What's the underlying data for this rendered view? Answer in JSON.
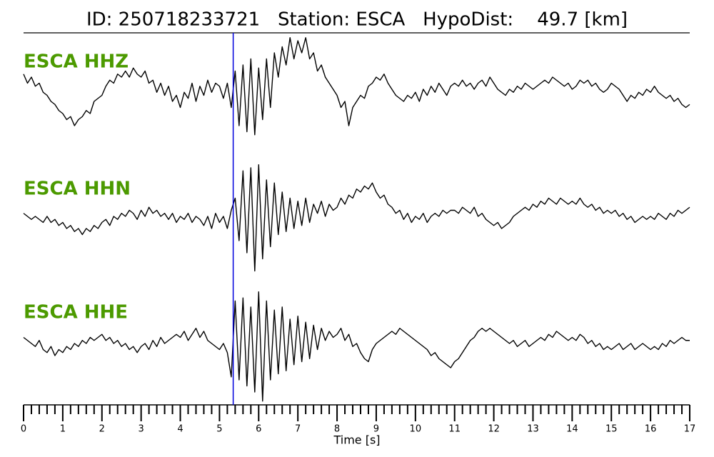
{
  "chart_data": {
    "type": "line",
    "title": "ID: 250718233721   Station: ESCA   HypoDist:    49.7 [km]",
    "xlabel": "Time [s]",
    "xlim": [
      0,
      17
    ],
    "xticks": [
      0,
      1,
      2,
      3,
      4,
      5,
      6,
      7,
      8,
      9,
      10,
      11,
      12,
      13,
      14,
      15,
      16,
      17
    ],
    "minor_xticks": [
      0.2,
      0.4,
      0.6,
      0.8,
      1.2,
      1.4,
      1.6,
      1.8,
      2.2,
      2.4,
      2.6,
      2.8,
      3.2,
      3.4,
      3.6,
      3.8,
      4.2,
      4.4,
      4.6,
      4.8,
      5.2,
      5.4,
      5.6,
      5.8,
      6.2,
      6.4,
      6.6,
      6.8,
      7.2,
      7.4,
      7.6,
      7.8,
      8.2,
      8.4,
      8.6,
      8.8,
      9.2,
      9.4,
      9.6,
      9.8,
      10.2,
      10.4,
      10.6,
      10.8,
      11.2,
      11.4,
      11.6,
      11.8,
      12.2,
      12.4,
      12.6,
      12.8,
      13.2,
      13.4,
      13.6,
      13.8,
      14.2,
      14.4,
      14.6,
      14.8,
      15.2,
      15.4,
      15.6,
      15.8,
      16.2,
      16.4,
      16.6,
      16.8
    ],
    "ylim": [
      -1,
      1
    ],
    "label_color": "#4c9a00",
    "vline": {
      "x": 5.35,
      "color": "#0000dd"
    },
    "x": [
      0,
      0.1,
      0.2,
      0.3,
      0.4,
      0.5,
      0.6,
      0.7,
      0.8,
      0.9,
      1,
      1.1,
      1.2,
      1.3,
      1.4,
      1.5,
      1.6,
      1.7,
      1.8,
      1.9,
      2,
      2.1,
      2.2,
      2.3,
      2.4,
      2.5,
      2.6,
      2.7,
      2.8,
      2.9,
      3,
      3.1,
      3.2,
      3.3,
      3.4,
      3.5,
      3.6,
      3.7,
      3.8,
      3.9,
      4,
      4.1,
      4.2,
      4.3,
      4.4,
      4.5,
      4.6,
      4.7,
      4.8,
      4.9,
      5,
      5.1,
      5.2,
      5.3,
      5.4,
      5.5,
      5.6,
      5.7,
      5.8,
      5.9,
      6,
      6.1,
      6.2,
      6.3,
      6.4,
      6.5,
      6.6,
      6.7,
      6.8,
      6.9,
      7,
      7.1,
      7.2,
      7.3,
      7.4,
      7.5,
      7.6,
      7.7,
      7.8,
      7.9,
      8,
      8.1,
      8.2,
      8.3,
      8.4,
      8.5,
      8.6,
      8.7,
      8.8,
      8.9,
      9,
      9.1,
      9.2,
      9.3,
      9.4,
      9.5,
      9.6,
      9.7,
      9.8,
      9.9,
      10,
      10.1,
      10.2,
      10.3,
      10.4,
      10.5,
      10.6,
      10.7,
      10.8,
      10.9,
      11,
      11.1,
      11.2,
      11.3,
      11.4,
      11.5,
      11.6,
      11.7,
      11.8,
      11.9,
      12,
      12.1,
      12.2,
      12.3,
      12.4,
      12.5,
      12.6,
      12.7,
      12.8,
      12.9,
      13,
      13.1,
      13.2,
      13.3,
      13.4,
      13.5,
      13.6,
      13.7,
      13.8,
      13.9,
      14,
      14.1,
      14.2,
      14.3,
      14.4,
      14.5,
      14.6,
      14.7,
      14.8,
      14.9,
      15,
      15.1,
      15.2,
      15.3,
      15.4,
      15.5,
      15.6,
      15.7,
      15.8,
      15.9,
      16,
      16.1,
      16.2,
      16.3,
      16.4,
      16.5,
      16.6,
      16.7,
      16.8,
      16.9,
      17
    ],
    "series": [
      {
        "name": "ESCA HHZ",
        "color": "#000000",
        "values": [
          0.25,
          0.1,
          0.2,
          0.05,
          0.1,
          -0.05,
          -0.1,
          -0.2,
          -0.25,
          -0.35,
          -0.4,
          -0.5,
          -0.45,
          -0.6,
          -0.5,
          -0.45,
          -0.35,
          -0.4,
          -0.2,
          -0.15,
          -0.1,
          0.05,
          0.15,
          0.1,
          0.25,
          0.2,
          0.3,
          0.2,
          0.35,
          0.25,
          0.2,
          0.3,
          0.1,
          0.15,
          -0.05,
          0.1,
          -0.1,
          0.05,
          -0.2,
          -0.1,
          -0.3,
          -0.05,
          -0.15,
          0.1,
          -0.2,
          0.05,
          -0.1,
          0.15,
          -0.05,
          0.1,
          0.05,
          -0.15,
          0.1,
          -0.3,
          0.3,
          -0.6,
          0.4,
          -0.7,
          0.5,
          -0.75,
          0.35,
          -0.5,
          0.5,
          -0.3,
          0.6,
          0.2,
          0.7,
          0.4,
          0.85,
          0.5,
          0.8,
          0.6,
          0.85,
          0.5,
          0.6,
          0.3,
          0.4,
          0.2,
          0.1,
          0.0,
          -0.1,
          -0.3,
          -0.2,
          -0.6,
          -0.3,
          -0.2,
          -0.1,
          -0.15,
          0.05,
          0.1,
          0.2,
          0.15,
          0.25,
          0.1,
          0.0,
          -0.1,
          -0.15,
          -0.2,
          -0.1,
          -0.15,
          -0.05,
          -0.2,
          0.0,
          -0.1,
          0.05,
          -0.05,
          0.1,
          0.0,
          -0.1,
          0.05,
          0.1,
          0.05,
          0.15,
          0.05,
          0.1,
          0.0,
          0.1,
          0.15,
          0.05,
          0.2,
          0.1,
          0.0,
          -0.05,
          -0.1,
          0.0,
          -0.05,
          0.05,
          0.0,
          0.1,
          0.05,
          0.0,
          0.05,
          0.1,
          0.15,
          0.1,
          0.2,
          0.15,
          0.1,
          0.05,
          0.1,
          0.0,
          0.05,
          0.15,
          0.1,
          0.15,
          0.05,
          0.1,
          0.0,
          -0.05,
          0.0,
          0.1,
          0.05,
          0.0,
          -0.1,
          -0.2,
          -0.1,
          -0.15,
          -0.05,
          -0.1,
          0.0,
          -0.05,
          0.05,
          -0.05,
          -0.1,
          -0.15,
          -0.1,
          -0.2,
          -0.15,
          -0.25,
          -0.3,
          -0.25
        ]
      },
      {
        "name": "ESCA HHN",
        "color": "#000000",
        "values": [
          0.05,
          0.0,
          -0.05,
          0.0,
          -0.05,
          -0.1,
          0.0,
          -0.1,
          -0.05,
          -0.15,
          -0.1,
          -0.2,
          -0.15,
          -0.25,
          -0.2,
          -0.3,
          -0.2,
          -0.25,
          -0.15,
          -0.2,
          -0.1,
          -0.05,
          -0.15,
          0.0,
          -0.05,
          0.05,
          0.0,
          0.1,
          0.05,
          -0.05,
          0.1,
          0.0,
          0.15,
          0.05,
          0.1,
          0.0,
          0.05,
          -0.05,
          0.05,
          -0.1,
          0.0,
          -0.05,
          0.05,
          -0.1,
          0.0,
          -0.05,
          -0.15,
          0.0,
          -0.2,
          0.05,
          -0.1,
          0.0,
          -0.2,
          0.1,
          0.3,
          -0.4,
          0.75,
          -0.6,
          0.8,
          -0.9,
          0.85,
          -0.7,
          0.6,
          -0.5,
          0.55,
          -0.3,
          0.4,
          -0.25,
          0.3,
          -0.2,
          0.25,
          -0.15,
          0.3,
          -0.1,
          0.2,
          0.05,
          0.25,
          0.0,
          0.2,
          0.1,
          0.15,
          0.3,
          0.2,
          0.35,
          0.3,
          0.45,
          0.4,
          0.5,
          0.45,
          0.55,
          0.4,
          0.3,
          0.35,
          0.2,
          0.15,
          0.05,
          0.1,
          -0.05,
          0.05,
          -0.1,
          0.0,
          -0.05,
          0.05,
          -0.1,
          0.0,
          0.05,
          0.0,
          0.1,
          0.05,
          0.1,
          0.1,
          0.05,
          0.15,
          0.1,
          0.05,
          0.15,
          0.0,
          0.05,
          -0.05,
          -0.1,
          -0.15,
          -0.1,
          -0.2,
          -0.15,
          -0.1,
          0.0,
          0.05,
          0.1,
          0.15,
          0.1,
          0.2,
          0.15,
          0.25,
          0.2,
          0.3,
          0.25,
          0.2,
          0.3,
          0.25,
          0.2,
          0.25,
          0.2,
          0.3,
          0.2,
          0.15,
          0.2,
          0.1,
          0.15,
          0.05,
          0.1,
          0.05,
          0.1,
          0.0,
          0.05,
          -0.05,
          0.0,
          -0.1,
          -0.05,
          0.0,
          -0.05,
          0.0,
          -0.05,
          0.05,
          0.0,
          -0.05,
          0.05,
          0.0,
          0.1,
          0.05,
          0.1,
          0.15
        ]
      },
      {
        "name": "ESCA HHE",
        "color": "#000000",
        "values": [
          0.1,
          0.05,
          0.0,
          -0.05,
          0.05,
          -0.1,
          -0.15,
          -0.05,
          -0.2,
          -0.1,
          -0.15,
          -0.05,
          -0.1,
          0.0,
          -0.05,
          0.05,
          0.0,
          0.1,
          0.05,
          0.1,
          0.15,
          0.05,
          0.1,
          0.0,
          0.05,
          -0.05,
          0.0,
          -0.1,
          -0.05,
          -0.15,
          -0.05,
          0.0,
          -0.1,
          0.05,
          -0.05,
          0.1,
          0.0,
          0.05,
          0.1,
          0.15,
          0.1,
          0.2,
          0.05,
          0.15,
          0.25,
          0.1,
          0.2,
          0.05,
          0.0,
          -0.05,
          -0.1,
          0.0,
          -0.15,
          -0.55,
          0.7,
          -0.6,
          0.75,
          -0.7,
          0.6,
          -0.8,
          0.85,
          -0.95,
          0.7,
          -0.6,
          0.55,
          -0.5,
          0.6,
          -0.45,
          0.4,
          -0.35,
          0.45,
          -0.3,
          0.35,
          -0.25,
          0.3,
          -0.1,
          0.25,
          0.05,
          0.2,
          0.1,
          0.15,
          0.25,
          0.05,
          0.15,
          -0.05,
          0.0,
          -0.15,
          -0.25,
          -0.3,
          -0.1,
          0.0,
          0.05,
          0.1,
          0.15,
          0.2,
          0.15,
          0.25,
          0.2,
          0.15,
          0.1,
          0.05,
          0.0,
          -0.05,
          -0.1,
          -0.2,
          -0.15,
          -0.25,
          -0.3,
          -0.35,
          -0.4,
          -0.3,
          -0.25,
          -0.15,
          -0.05,
          0.05,
          0.1,
          0.2,
          0.25,
          0.2,
          0.25,
          0.2,
          0.15,
          0.1,
          0.05,
          0.0,
          0.05,
          -0.05,
          0.0,
          0.05,
          -0.05,
          0.0,
          0.05,
          0.1,
          0.05,
          0.15,
          0.1,
          0.2,
          0.15,
          0.1,
          0.05,
          0.1,
          0.05,
          0.15,
          0.1,
          0.0,
          0.05,
          -0.05,
          0.0,
          -0.1,
          -0.05,
          -0.1,
          -0.05,
          0.0,
          -0.1,
          -0.05,
          0.0,
          -0.1,
          -0.05,
          0.0,
          -0.05,
          -0.1,
          -0.05,
          -0.1,
          0.0,
          -0.05,
          0.05,
          0.0,
          0.05,
          0.1,
          0.05,
          0.05
        ]
      }
    ]
  }
}
